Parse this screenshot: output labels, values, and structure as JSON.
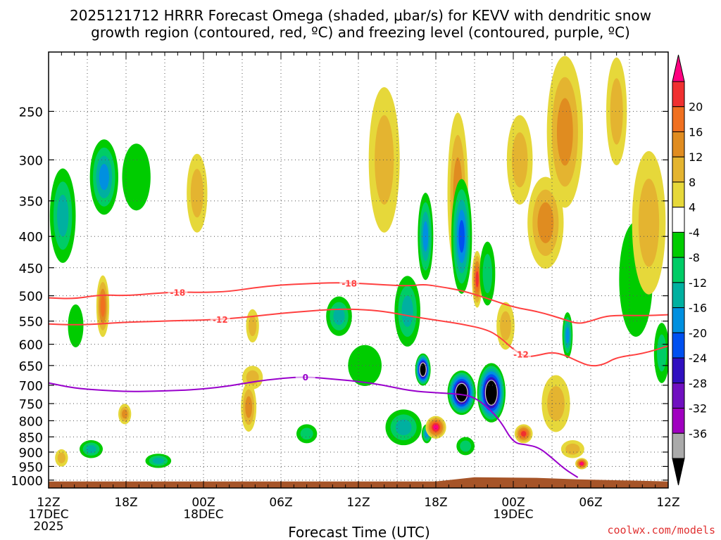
{
  "chart_data": {
    "type": "heatmap",
    "title_line1": "2025121712 HRRR Forecast Omega (shaded, μbar/s) for KEVV with dendritic snow",
    "title_line2": "growth region (contoured, red, ºC) and freezing level (contoured, purple, ºC)",
    "xlabel": "Forecast Time (UTC)",
    "credit": "coolwx.com/models",
    "x_range_hours": [
      0,
      48
    ],
    "x_ticks": [
      {
        "h": 0,
        "label": "12Z",
        "sub": "17DEC",
        "sub2": "2025"
      },
      {
        "h": 6,
        "label": "18Z",
        "sub": "",
        "sub2": ""
      },
      {
        "h": 12,
        "label": "00Z",
        "sub": "18DEC",
        "sub2": ""
      },
      {
        "h": 18,
        "label": "06Z",
        "sub": "",
        "sub2": ""
      },
      {
        "h": 24,
        "label": "12Z",
        "sub": "",
        "sub2": ""
      },
      {
        "h": 30,
        "label": "18Z",
        "sub": "",
        "sub2": ""
      },
      {
        "h": 36,
        "label": "00Z",
        "sub": "19DEC",
        "sub2": ""
      },
      {
        "h": 42,
        "label": "06Z",
        "sub": "",
        "sub2": ""
      },
      {
        "h": 48,
        "label": "12Z",
        "sub": "",
        "sub2": ""
      }
    ],
    "y_range_mb": [
      200,
      1030
    ],
    "y_ticks": [
      250,
      300,
      350,
      400,
      450,
      500,
      550,
      600,
      650,
      700,
      750,
      800,
      850,
      900,
      950,
      1000
    ],
    "colorbar": {
      "labels": [
        "20",
        "16",
        "12",
        "8",
        "4",
        "-4",
        "-8",
        "-12",
        "-16",
        "-20",
        "-24",
        "-28",
        "-32",
        "-36"
      ],
      "colors": [
        "#ff0080",
        "#f03030",
        "#f07020",
        "#e08c20",
        "#e4b430",
        "#e6d83a",
        "#ffffff",
        "#00cc00",
        "#00cc66",
        "#00b0a0",
        "#0090e0",
        "#0050f0",
        "#3010c0",
        "#7010c0",
        "#a000c0",
        "#aaaaaa",
        "#000000"
      ]
    },
    "omega_blobs": [
      {
        "h": 1.1,
        "p": 370,
        "wh": 1.0,
        "wp": 130,
        "value": -14
      },
      {
        "h": 2.1,
        "p": 560,
        "wh": 0.6,
        "wp": 90,
        "value": -6
      },
      {
        "h": 1.0,
        "p": 920,
        "wh": 0.5,
        "wp": 60,
        "value": 5
      },
      {
        "h": 3.3,
        "p": 890,
        "wh": 0.9,
        "wp": 60,
        "value": -14
      },
      {
        "h": 4.3,
        "p": 320,
        "wh": 1.1,
        "wp": 90,
        "value": -16
      },
      {
        "h": 4.2,
        "p": 520,
        "wh": 0.5,
        "wp": 120,
        "value": 12
      },
      {
        "h": 5.9,
        "p": 780,
        "wh": 0.5,
        "wp": 60,
        "value": 10
      },
      {
        "h": 6.8,
        "p": 320,
        "wh": 1.1,
        "wp": 80,
        "value": -6
      },
      {
        "h": 8.5,
        "p": 930,
        "wh": 1.0,
        "wp": 50,
        "value": -12
      },
      {
        "h": 11.5,
        "p": 340,
        "wh": 0.8,
        "wp": 100,
        "value": 5
      },
      {
        "h": 15.5,
        "p": 760,
        "wh": 0.6,
        "wp": 140,
        "value": 10
      },
      {
        "h": 15.8,
        "p": 560,
        "wh": 0.5,
        "wp": 70,
        "value": 5
      },
      {
        "h": 15.8,
        "p": 680,
        "wh": 0.8,
        "wp": 60,
        "value": 5
      },
      {
        "h": 20.0,
        "p": 840,
        "wh": 0.8,
        "wp": 60,
        "value": -8
      },
      {
        "h": 22.5,
        "p": 540,
        "wh": 1.0,
        "wp": 80,
        "value": -14
      },
      {
        "h": 24.5,
        "p": 650,
        "wh": 1.3,
        "wp": 100,
        "value": -6
      },
      {
        "h": 26.0,
        "p": 300,
        "wh": 1.2,
        "wp": 160,
        "value": 6
      },
      {
        "h": 27.8,
        "p": 530,
        "wh": 1.0,
        "wp": 140,
        "value": -14
      },
      {
        "h": 27.5,
        "p": 820,
        "wh": 1.4,
        "wp": 110,
        "value": -14
      },
      {
        "h": 29.2,
        "p": 400,
        "wh": 0.6,
        "wp": 130,
        "value": -16
      },
      {
        "h": 29.0,
        "p": 660,
        "wh": 0.6,
        "wp": 80,
        "value": -36
      },
      {
        "h": 29.3,
        "p": 840,
        "wh": 0.4,
        "wp": 60,
        "value": -18
      },
      {
        "h": 30.0,
        "p": 820,
        "wh": 0.8,
        "wp": 70,
        "value": 22
      },
      {
        "h": 31.7,
        "p": 340,
        "wh": 0.8,
        "wp": 200,
        "value": 10
      },
      {
        "h": 32.0,
        "p": 400,
        "wh": 0.8,
        "wp": 170,
        "value": -22
      },
      {
        "h": 32.0,
        "p": 720,
        "wh": 1.1,
        "wp": 120,
        "value": -36
      },
      {
        "h": 32.3,
        "p": 880,
        "wh": 0.7,
        "wp": 60,
        "value": -8
      },
      {
        "h": 33.2,
        "p": 470,
        "wh": 0.4,
        "wp": 100,
        "value": 18
      },
      {
        "h": 34.3,
        "p": 720,
        "wh": 1.1,
        "wp": 160,
        "value": -36
      },
      {
        "h": 34.0,
        "p": 460,
        "wh": 0.6,
        "wp": 110,
        "value": -10
      },
      {
        "h": 35.4,
        "p": 560,
        "wh": 0.7,
        "wp": 100,
        "value": 6
      },
      {
        "h": 36.5,
        "p": 300,
        "wh": 1.0,
        "wp": 100,
        "value": 6
      },
      {
        "h": 36.8,
        "p": 840,
        "wh": 0.7,
        "wp": 60,
        "value": 18
      },
      {
        "h": 38.5,
        "p": 380,
        "wh": 1.4,
        "wp": 130,
        "value": 10
      },
      {
        "h": 39.3,
        "p": 750,
        "wh": 1.1,
        "wp": 160,
        "value": 6
      },
      {
        "h": 40.0,
        "p": 270,
        "wh": 1.4,
        "wp": 150,
        "value": 8
      },
      {
        "h": 40.2,
        "p": 580,
        "wh": 0.4,
        "wp": 100,
        "value": -16
      },
      {
        "h": 40.6,
        "p": 890,
        "wh": 0.9,
        "wp": 60,
        "value": 6
      },
      {
        "h": 41.3,
        "p": 940,
        "wh": 0.5,
        "wp": 40,
        "value": 22
      },
      {
        "h": 44.0,
        "p": 250,
        "wh": 0.8,
        "wp": 100,
        "value": 6
      },
      {
        "h": 45.5,
        "p": 470,
        "wh": 1.3,
        "wp": 200,
        "value": -6
      },
      {
        "h": 46.5,
        "p": 380,
        "wh": 1.3,
        "wp": 200,
        "value": 5
      },
      {
        "h": 47.5,
        "p": 620,
        "wh": 0.6,
        "wp": 140,
        "value": -8
      }
    ],
    "contours": [
      {
        "name": "dgz-minus18",
        "label": "-18",
        "color": "#ff4040",
        "points": [
          [
            0,
            504
          ],
          [
            2,
            506
          ],
          [
            4,
            498
          ],
          [
            6,
            500
          ],
          [
            8,
            496
          ],
          [
            10,
            493
          ],
          [
            12,
            494
          ],
          [
            14,
            492
          ],
          [
            16,
            485
          ],
          [
            18,
            480
          ],
          [
            20,
            478
          ],
          [
            22,
            476
          ],
          [
            24,
            477
          ],
          [
            26,
            480
          ],
          [
            28,
            482
          ],
          [
            29,
            479
          ],
          [
            30,
            482
          ],
          [
            32,
            490
          ],
          [
            34,
            505
          ],
          [
            36,
            522
          ],
          [
            38,
            531
          ],
          [
            40,
            547
          ],
          [
            41,
            556
          ],
          [
            42,
            550
          ],
          [
            43,
            541
          ],
          [
            44,
            538
          ],
          [
            46,
            539
          ],
          [
            48,
            537
          ]
        ],
        "label_h": [
          10,
          23.3
        ]
      },
      {
        "name": "dgz-minus12",
        "label": "-12",
        "color": "#ff4040",
        "points": [
          [
            0,
            556
          ],
          [
            2,
            558
          ],
          [
            4,
            556
          ],
          [
            6,
            552
          ],
          [
            8,
            551
          ],
          [
            10,
            549
          ],
          [
            12,
            548
          ],
          [
            14,
            545
          ],
          [
            16,
            540
          ],
          [
            18,
            534
          ],
          [
            20,
            530
          ],
          [
            22,
            526
          ],
          [
            24,
            526
          ],
          [
            26,
            530
          ],
          [
            28,
            540
          ],
          [
            30,
            548
          ],
          [
            32,
            556
          ],
          [
            34,
            568
          ],
          [
            35,
            585
          ],
          [
            36,
            612
          ],
          [
            37,
            630
          ],
          [
            38,
            625
          ],
          [
            39,
            618
          ],
          [
            40,
            625
          ],
          [
            41,
            640
          ],
          [
            42,
            652
          ],
          [
            43,
            648
          ],
          [
            44,
            630
          ],
          [
            46,
            622
          ],
          [
            48,
            604
          ]
        ],
        "label_h": [
          13.3,
          36.6
        ]
      },
      {
        "name": "freezing-0C",
        "label": "0",
        "color": "#9900cc",
        "points": [
          [
            0,
            694
          ],
          [
            2,
            708
          ],
          [
            4,
            713
          ],
          [
            6,
            717
          ],
          [
            8,
            716
          ],
          [
            10,
            714
          ],
          [
            12,
            710
          ],
          [
            14,
            702
          ],
          [
            16,
            690
          ],
          [
            18,
            682
          ],
          [
            20,
            678
          ],
          [
            22,
            684
          ],
          [
            24,
            690
          ],
          [
            26,
            700
          ],
          [
            28,
            715
          ],
          [
            30,
            720
          ],
          [
            32,
            724
          ],
          [
            33,
            733
          ],
          [
            34,
            760
          ],
          [
            35,
            800
          ],
          [
            36,
            870
          ],
          [
            37,
            875
          ],
          [
            38,
            885
          ],
          [
            39,
            920
          ],
          [
            40,
            960
          ],
          [
            41,
            990
          ]
        ],
        "label_h": [
          19.9
        ]
      }
    ],
    "ground": {
      "color": "#a65428"
    }
  }
}
